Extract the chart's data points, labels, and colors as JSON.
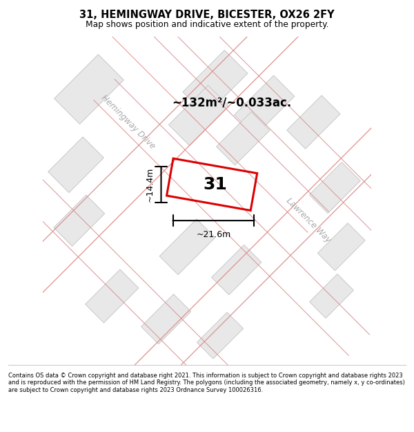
{
  "title": "31, HEMINGWAY DRIVE, BICESTER, OX26 2FY",
  "subtitle": "Map shows position and indicative extent of the property.",
  "footer": "Contains OS data © Crown copyright and database right 2021. This information is subject to Crown copyright and database rights 2023 and is reproduced with the permission of HM Land Registry. The polygons (including the associated geometry, namely x, y co-ordinates) are subject to Crown copyright and database rights 2023 Ordnance Survey 100026316.",
  "area_label": "~132m²/~0.033ac.",
  "property_number": "31",
  "width_label": "~21.6m",
  "height_label": "~14.4m",
  "road_label_1": "Hemingway Drive",
  "road_label_2": "Lawrence Way",
  "building_fill": "#e8e8e8",
  "building_stroke": "#c8c8c8",
  "road_line_color": "#e09090",
  "property_red": "#dd0000"
}
